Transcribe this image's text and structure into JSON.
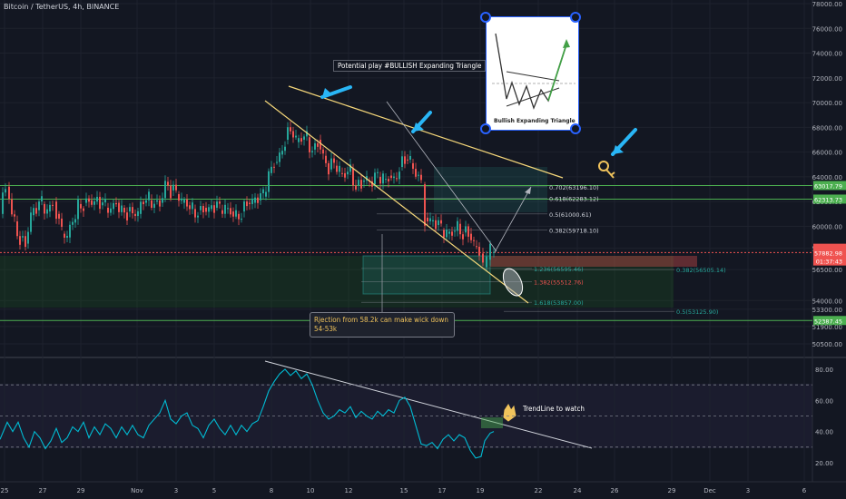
{
  "header": {
    "symbol_line": "Bitcoin / TetherUS, 4h, BINANCE"
  },
  "annotations": {
    "title_box": "Potential play #BULLISH Expanding Triangle",
    "note_box": "Rjection from 58.2k can make wick down 54-53k",
    "trendline_note": "TrendLine to watch",
    "image_caption": "Bullish Expanding Triangle"
  },
  "colors": {
    "background": "#131722",
    "candle_up": "#26a69a",
    "candle_down": "#ef5350",
    "rsi_line": "#00bcd4",
    "trend_line": "#f5d77a",
    "level_green": "#4caf50",
    "arrow_cyan": "#29b6f6",
    "price_label": "#ef5350"
  },
  "icons": [
    "arrow-cyan-icon",
    "key-icon",
    "hand-pointing-icon"
  ],
  "chart_data": [
    {
      "type": "candlestick",
      "title": "",
      "x_tick_labels": [
        "25",
        "27",
        "29",
        "Nov",
        "3",
        "5",
        "8",
        "10",
        "12",
        "15",
        "17",
        "19",
        "22",
        "24",
        "26",
        "29",
        "Dec",
        "3",
        "6"
      ],
      "y_tick_labels": [
        "78000.00",
        "76000.00",
        "74000.00",
        "72000.00",
        "70000.00",
        "68000.00",
        "66000.00",
        "64000.00",
        "62000.00",
        "60000.00",
        "58227.15",
        "56500.00",
        "54000.00",
        "53300.00",
        "51900.00",
        "50500.00"
      ],
      "ylim": [
        48500,
        79500
      ],
      "close_path": [
        [
          0,
          61000
        ],
        [
          6,
          63200
        ],
        [
          10,
          62200
        ],
        [
          16,
          60400
        ],
        [
          22,
          59100
        ],
        [
          28,
          58600
        ],
        [
          34,
          60900
        ],
        [
          40,
          61300
        ],
        [
          46,
          61800
        ],
        [
          52,
          61200
        ],
        [
          58,
          62000
        ],
        [
          62,
          61000
        ],
        [
          68,
          59400
        ],
        [
          74,
          59100
        ],
        [
          80,
          60300
        ],
        [
          86,
          61800
        ],
        [
          92,
          61900
        ],
        [
          98,
          62100
        ],
        [
          104,
          62000
        ],
        [
          110,
          61700
        ],
        [
          116,
          61500
        ],
        [
          122,
          61400
        ],
        [
          128,
          61900
        ],
        [
          134,
          61500
        ],
        [
          140,
          61200
        ],
        [
          146,
          61000
        ],
        [
          152,
          61000
        ],
        [
          158,
          61900
        ],
        [
          164,
          62100
        ],
        [
          170,
          62000
        ],
        [
          176,
          61900
        ],
        [
          182,
          63600
        ],
        [
          188,
          62900
        ],
        [
          194,
          62600
        ],
        [
          200,
          61900
        ],
        [
          206,
          61700
        ],
        [
          212,
          61400
        ],
        [
          218,
          61300
        ],
        [
          224,
          61500
        ],
        [
          230,
          61400
        ],
        [
          236,
          61500
        ],
        [
          242,
          61300
        ],
        [
          248,
          61400
        ],
        [
          254,
          61200
        ],
        [
          260,
          61000
        ],
        [
          266,
          61200
        ],
        [
          272,
          61900
        ],
        [
          278,
          61900
        ],
        [
          284,
          62100
        ],
        [
          290,
          62400
        ],
        [
          296,
          64300
        ],
        [
          302,
          65200
        ],
        [
          308,
          65800
        ],
        [
          314,
          67000
        ],
        [
          320,
          67700
        ],
        [
          326,
          66800
        ],
        [
          332,
          67000
        ],
        [
          338,
          67200
        ],
        [
          344,
          66200
        ],
        [
          350,
          67000
        ],
        [
          356,
          65700
        ],
        [
          362,
          64600
        ],
        [
          368,
          64900
        ],
        [
          374,
          64300
        ],
        [
          380,
          64200
        ],
        [
          386,
          64700
        ],
        [
          392,
          63300
        ],
        [
          398,
          63600
        ],
        [
          404,
          63700
        ],
        [
          410,
          63400
        ],
        [
          416,
          64000
        ],
        [
          422,
          63800
        ],
        [
          428,
          64100
        ],
        [
          434,
          63900
        ],
        [
          440,
          64800
        ],
        [
          446,
          65400
        ],
        [
          452,
          65100
        ],
        [
          458,
          64100
        ],
        [
          464,
          63400
        ],
        [
          468,
          60700
        ],
        [
          474,
          60400
        ],
        [
          480,
          60100
        ],
        [
          486,
          59700
        ],
        [
          492,
          59400
        ],
        [
          498,
          59600
        ],
        [
          504,
          60200
        ],
        [
          510,
          59500
        ],
        [
          516,
          59400
        ],
        [
          522,
          58400
        ],
        [
          528,
          57800
        ],
        [
          532,
          56700
        ],
        [
          536,
          57300
        ],
        [
          540,
          57900
        ],
        [
          544,
          57900
        ]
      ],
      "series": [
        {
          "name": "BTCUSDT",
          "last": "57882.98"
        }
      ],
      "price_tags": [
        {
          "label": "58227.15",
          "value": 58227.15,
          "color": "#ef5350"
        },
        {
          "label": "BTCUSDT",
          "value": 58000,
          "color": "#ef5350"
        },
        {
          "label": "57882.98",
          "value": 57882.98,
          "color": "#ef5350"
        },
        {
          "label": "01:37:43",
          "value": 57200,
          "color": "#ef5350"
        },
        {
          "label": "63017.79",
          "value": 63300,
          "color": "#4caf50"
        },
        {
          "label": "62313.73",
          "value": 62200,
          "color": "#4caf50"
        },
        {
          "label": "52387.45",
          "value": 52387.45,
          "color": "#4caf50"
        }
      ],
      "levels": [
        {
          "label": "0.702(63196.10)",
          "value": 63196.1
        },
        {
          "label": "0.618(62283.12)",
          "value": 62283.12
        },
        {
          "label": "0.5(61000.61)",
          "value": 61000.61
        },
        {
          "label": "0.382(59718.10)",
          "value": 59718.1
        },
        {
          "label": "1.236(56595.46)",
          "value": 56595.46
        },
        {
          "label": "1.382(55512.76)",
          "value": 55512.76
        },
        {
          "label": "1.618(53857.00)",
          "value": 53857.0
        },
        {
          "label": "0.382(56505.14)",
          "value": 56505.14
        },
        {
          "label": "0.5(53125.90)",
          "value": 53125.9
        }
      ],
      "horizontal_lines": [
        63300,
        62200,
        52387.45
      ]
    },
    {
      "type": "line",
      "title": "",
      "y_tick_labels": [
        "80.00",
        "60.00",
        "40.00",
        "20.00"
      ],
      "ylim": [
        12,
        88
      ],
      "guide_levels": [
        70,
        50,
        30
      ],
      "series": [
        {
          "values": [
            [
              0,
              35
            ],
            [
              8,
              46
            ],
            [
              14,
              40
            ],
            [
              20,
              46
            ],
            [
              26,
              36
            ],
            [
              32,
              30
            ],
            [
              38,
              40
            ],
            [
              44,
              36
            ],
            [
              50,
              29
            ],
            [
              56,
              34
            ],
            [
              62,
              42
            ],
            [
              68,
              33
            ],
            [
              74,
              36
            ],
            [
              80,
              43
            ],
            [
              86,
              40
            ],
            [
              92,
              46
            ],
            [
              98,
              36
            ],
            [
              104,
              43
            ],
            [
              110,
              38
            ],
            [
              116,
              45
            ],
            [
              122,
              42
            ],
            [
              128,
              36
            ],
            [
              134,
              43
            ],
            [
              140,
              38
            ],
            [
              146,
              44
            ],
            [
              152,
              38
            ],
            [
              158,
              36
            ],
            [
              164,
              44
            ],
            [
              170,
              48
            ],
            [
              176,
              52
            ],
            [
              182,
              60
            ],
            [
              188,
              48
            ],
            [
              194,
              45
            ],
            [
              200,
              50
            ],
            [
              206,
              52
            ],
            [
              212,
              44
            ],
            [
              218,
              42
            ],
            [
              224,
              36
            ],
            [
              230,
              44
            ],
            [
              236,
              48
            ],
            [
              242,
              42
            ],
            [
              248,
              38
            ],
            [
              254,
              44
            ],
            [
              260,
              38
            ],
            [
              266,
              44
            ],
            [
              272,
              40
            ],
            [
              278,
              45
            ],
            [
              284,
              47
            ],
            [
              290,
              56
            ],
            [
              296,
              66
            ],
            [
              302,
              72
            ],
            [
              308,
              77
            ],
            [
              314,
              80
            ],
            [
              320,
              76
            ],
            [
              326,
              79
            ],
            [
              332,
              74
            ],
            [
              338,
              77
            ],
            [
              344,
              70
            ],
            [
              350,
              60
            ],
            [
              356,
              52
            ],
            [
              362,
              48
            ],
            [
              368,
              50
            ],
            [
              374,
              54
            ],
            [
              380,
              52
            ],
            [
              386,
              56
            ],
            [
              392,
              49
            ],
            [
              398,
              53
            ],
            [
              404,
              50
            ],
            [
              410,
              48
            ],
            [
              416,
              53
            ],
            [
              422,
              50
            ],
            [
              428,
              54
            ],
            [
              434,
              52
            ],
            [
              440,
              60
            ],
            [
              446,
              62
            ],
            [
              452,
              56
            ],
            [
              458,
              44
            ],
            [
              464,
              32
            ],
            [
              470,
              31
            ],
            [
              476,
              33
            ],
            [
              482,
              29
            ],
            [
              488,
              35
            ],
            [
              494,
              38
            ],
            [
              500,
              34
            ],
            [
              506,
              38
            ],
            [
              512,
              36
            ],
            [
              518,
              28
            ],
            [
              524,
              23
            ],
            [
              530,
              24
            ],
            [
              534,
              34
            ],
            [
              540,
              39
            ],
            [
              544,
              40
            ]
          ]
        }
      ]
    }
  ]
}
